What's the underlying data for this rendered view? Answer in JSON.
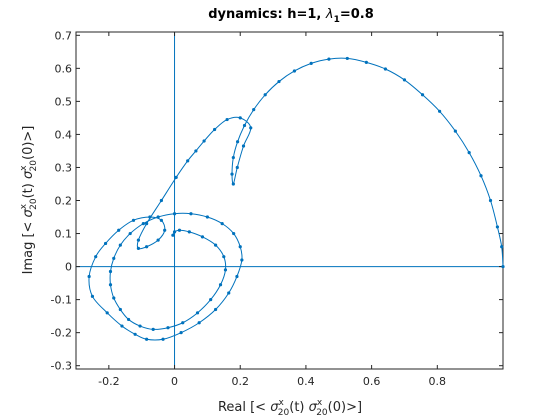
{
  "chart_data": {
    "type": "line",
    "title": {
      "prefix": "dynamics:  h=1, ",
      "lambda": "λ",
      "lambda_sub": "1",
      "suffix": "=0.8"
    },
    "xlabel": {
      "part1": "Real [< ",
      "sigma": "σ",
      "sup_x": "x",
      "sub_20": "20",
      "part2": "(t) ",
      "sigma2": "σ",
      "sup_x2": "x",
      "sub_20b": "20",
      "part3": "(0)>]"
    },
    "ylabel": {
      "part1": "Imag [< ",
      "sigma": "σ",
      "sup_x": "x",
      "sub_20": "20",
      "part2": "(t) ",
      "sigma2": "σ",
      "sup_x2": "x",
      "sub_20b": "20",
      "part3": "(0)>]"
    },
    "xlim": [
      -0.3,
      1.0
    ],
    "ylim": [
      -0.31,
      0.71
    ],
    "xticks": [
      -0.2,
      0,
      0.2,
      0.4,
      0.6,
      0.8
    ],
    "xtick_labels": [
      "-0.2",
      "0",
      "0.2",
      "0.4",
      "0.6",
      "0.8"
    ],
    "yticks": [
      -0.3,
      -0.2,
      -0.1,
      0,
      0.1,
      0.2,
      0.3,
      0.4,
      0.5,
      0.6,
      0.7
    ],
    "ytick_labels": [
      "-0.3",
      "-0.2",
      "-0.1",
      "0",
      "0.1",
      "0.2",
      "0.3",
      "0.4",
      "0.5",
      "0.6",
      "0.7"
    ],
    "zero_lines": true,
    "grid": false,
    "series_color": "#0072bd",
    "axis_color": "#262626",
    "series": [
      {
        "x": [
          1.0,
          0.996,
          0.983,
          0.962,
          0.933,
          0.897,
          0.855,
          0.807,
          0.755,
          0.7,
          0.642,
          0.584,
          0.526,
          0.47,
          0.416,
          0.365,
          0.318,
          0.276,
          0.241,
          0.213,
          0.192,
          0.179,
          0.175,
          0.179,
          0.191,
          0.21,
          0.232,
          0.2,
          0.16,
          0.122,
          0.09,
          0.065,
          0.04,
          0.005,
          -0.04,
          -0.085,
          -0.11,
          -0.11,
          -0.085,
          -0.05,
          -0.03,
          -0.04,
          -0.075,
          -0.125,
          -0.17,
          -0.21,
          -0.24,
          -0.26,
          -0.25,
          -0.205,
          -0.16,
          -0.12,
          -0.085,
          -0.035,
          0.02,
          0.075,
          0.125,
          0.165,
          0.19,
          0.205,
          0.2,
          0.18,
          0.145,
          0.1,
          0.05,
          0.0,
          -0.05,
          -0.095,
          -0.135,
          -0.165,
          -0.185,
          -0.195,
          -0.195,
          -0.185,
          -0.165,
          -0.14,
          -0.105,
          -0.065,
          -0.02,
          0.025,
          0.07,
          0.11,
          0.14,
          0.155,
          0.15,
          0.125,
          0.085,
          0.045,
          0.015,
          0.0,
          -0.005
        ],
        "y": [
          0.0,
          0.06,
          0.12,
          0.2,
          0.275,
          0.345,
          0.41,
          0.47,
          0.52,
          0.565,
          0.598,
          0.618,
          0.63,
          0.628,
          0.615,
          0.592,
          0.56,
          0.52,
          0.475,
          0.427,
          0.378,
          0.33,
          0.28,
          0.25,
          0.3,
          0.365,
          0.42,
          0.45,
          0.445,
          0.415,
          0.38,
          0.35,
          0.32,
          0.27,
          0.2,
          0.13,
          0.08,
          0.055,
          0.06,
          0.08,
          0.11,
          0.14,
          0.15,
          0.14,
          0.11,
          0.07,
          0.03,
          -0.03,
          -0.09,
          -0.14,
          -0.18,
          -0.205,
          -0.22,
          -0.22,
          -0.2,
          -0.17,
          -0.13,
          -0.08,
          -0.03,
          0.02,
          0.06,
          0.1,
          0.13,
          0.15,
          0.16,
          0.16,
          0.15,
          0.13,
          0.1,
          0.065,
          0.025,
          -0.015,
          -0.055,
          -0.095,
          -0.13,
          -0.16,
          -0.18,
          -0.19,
          -0.185,
          -0.17,
          -0.14,
          -0.1,
          -0.055,
          -0.01,
          0.03,
          0.065,
          0.09,
          0.105,
          0.11,
          0.105,
          0.095
        ]
      }
    ]
  }
}
